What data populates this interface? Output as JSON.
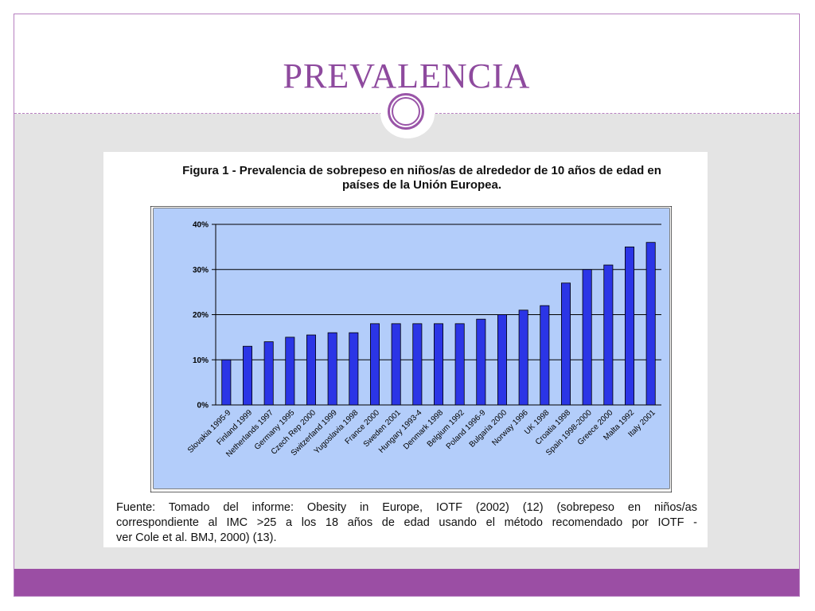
{
  "slide": {
    "title": "PREVALENCIA",
    "accent_color": "#9b4ea4"
  },
  "figure": {
    "title_line1": "Figura 1 - Prevalencia de sobrepeso en niños/as de alrededor de 10 años de edad en",
    "title_line2": "países de la Unión Europea.",
    "source_line1": "Fuente: Tomado del informe: Obesity in Europe, IOTF (2002) (12) (sobrepeso en niños/as",
    "source_line2": "correspondiente al IMC >25 a los 18 años de edad usando el método recomendado por IOTF -",
    "source_line3": "ver Cole et al. BMJ, 2000) (13)."
  },
  "chart_data": {
    "type": "bar",
    "categories": [
      "Slovakia 1995-9",
      "Finland 1999",
      "Netherlands 1997",
      "Germany 1995",
      "Czech Rep 2000",
      "Switzerland 1999",
      "Yugoslavia 1998",
      "France 2000",
      "Sweden 2001",
      "Hungary 1993-4",
      "Denmark 1998",
      "Belgium 1992",
      "Poland 1996-9",
      "Bulgaria 2000",
      "Norway 1996",
      "UK 1998",
      "Croatia 1998",
      "Spain 1998-2000",
      "Greece 2000",
      "Malta 1992",
      "Italy 2001"
    ],
    "values": [
      10,
      13,
      14,
      15,
      15.5,
      16,
      16,
      18,
      18,
      18,
      18,
      18,
      19,
      20,
      21,
      22,
      27,
      30,
      31,
      35,
      36
    ],
    "ylim": [
      0,
      40
    ],
    "yticks": [
      0,
      10,
      20,
      30,
      40
    ],
    "ytick_labels": [
      "0%",
      "10%",
      "20%",
      "30%",
      "40%"
    ],
    "grid": true,
    "colors": {
      "bar": "#2b35e6",
      "plot_bg": "#b3cdfa",
      "grid": "#000000"
    }
  }
}
